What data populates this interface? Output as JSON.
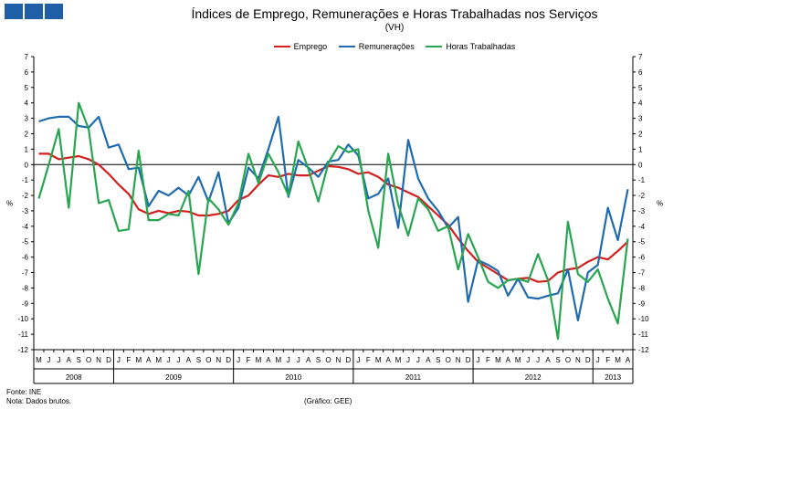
{
  "header": {
    "title": "Índices de Emprego, Remunerações e Horas Trabalhadas nos Serviços",
    "subtitle": "(VH)"
  },
  "colors": {
    "emprego": "#d41f1f",
    "remuneracoes": "#1f6bb0",
    "horas": "#27a550",
    "logo": "#1f5fa8"
  },
  "footer": {
    "source": "Fonte: INE",
    "note": "Nota: Dados brutos.",
    "credit": "(Gráfico: GEE)"
  },
  "chart_data": {
    "type": "line",
    "title": "Índices de Emprego, Remunerações e Horas Trabalhadas nos Serviços",
    "subtitle": "(VH)",
    "ylabel_left": "%",
    "ylabel_right": "%",
    "ylim": [
      -12,
      7
    ],
    "yticks": [
      7,
      6,
      5,
      4,
      3,
      2,
      1,
      0,
      -1,
      -2,
      -3,
      -4,
      -5,
      -6,
      -7,
      -8,
      -9,
      -10,
      -11,
      -12
    ],
    "months": [
      "M",
      "J",
      "J",
      "A",
      "S",
      "O",
      "N",
      "D",
      "J",
      "F",
      "M",
      "A",
      "M",
      "J",
      "J",
      "A",
      "S",
      "O",
      "N",
      "D",
      "J",
      "F",
      "M",
      "A",
      "M",
      "J",
      "J",
      "A",
      "S",
      "O",
      "N",
      "D",
      "J",
      "F",
      "M",
      "A",
      "M",
      "J",
      "J",
      "A",
      "S",
      "O",
      "N",
      "D",
      "J",
      "F",
      "M",
      "A",
      "M",
      "J",
      "J",
      "A",
      "S",
      "O",
      "N",
      "D",
      "J",
      "F",
      "M",
      "A"
    ],
    "years": [
      {
        "label": "2008",
        "start": 0,
        "end": 7
      },
      {
        "label": "2009",
        "start": 8,
        "end": 19
      },
      {
        "label": "2010",
        "start": 20,
        "end": 31
      },
      {
        "label": "2011",
        "start": 32,
        "end": 43
      },
      {
        "label": "2012",
        "start": 44,
        "end": 55
      },
      {
        "label": "2013",
        "start": 56,
        "end": 59
      }
    ],
    "grid": false,
    "legend_position": "top-center",
    "series": [
      {
        "name": "Emprego",
        "key": "emprego",
        "values": [
          0.7,
          0.7,
          0.35,
          0.45,
          0.55,
          0.35,
          0.0,
          -0.6,
          -1.3,
          -1.9,
          -2.9,
          -3.2,
          -3.0,
          -3.15,
          -3.0,
          -3.05,
          -3.3,
          -3.3,
          -3.2,
          -3.0,
          -2.3,
          -2.0,
          -1.3,
          -0.7,
          -0.8,
          -0.6,
          -0.7,
          -0.7,
          -0.4,
          -0.1,
          -0.15,
          -0.3,
          -0.6,
          -0.5,
          -0.8,
          -1.3,
          -1.5,
          -1.8,
          -2.1,
          -2.7,
          -3.3,
          -3.9,
          -4.8,
          -5.6,
          -6.3,
          -6.7,
          -7.1,
          -7.5,
          -7.4,
          -7.35,
          -7.6,
          -7.55,
          -7.0,
          -6.8,
          -6.7,
          -6.3,
          -6.0,
          -6.15,
          -5.6,
          -5.0
        ]
      },
      {
        "name": "Remunerações",
        "key": "remuneracoes",
        "values": [
          2.8,
          3.0,
          3.1,
          3.1,
          2.5,
          2.4,
          3.1,
          1.1,
          1.3,
          -0.3,
          -0.2,
          -2.7,
          -1.7,
          -2.0,
          -1.5,
          -2.0,
          -0.8,
          -2.4,
          -0.5,
          -3.8,
          -2.8,
          -0.2,
          -0.9,
          1.0,
          3.1,
          -2.1,
          0.3,
          -0.2,
          -0.8,
          0.2,
          0.3,
          1.3,
          0.6,
          -2.2,
          -1.9,
          -0.9,
          -4.1,
          1.6,
          -0.9,
          -2.2,
          -3.0,
          -4.1,
          -3.4,
          -8.9,
          -6.2,
          -6.5,
          -6.9,
          -8.5,
          -7.4,
          -8.6,
          -8.7,
          -8.5,
          -8.35,
          -6.8,
          -10.1,
          -7.0,
          -6.5,
          -2.8,
          -4.9,
          -1.6
        ]
      },
      {
        "name": "Horas Trabalhadas",
        "key": "horas",
        "values": [
          -2.2,
          0.0,
          2.3,
          -2.8,
          4.0,
          2.3,
          -2.5,
          -2.3,
          -4.3,
          -4.2,
          0.9,
          -3.6,
          -3.6,
          -3.2,
          -3.3,
          -1.7,
          -7.1,
          -2.2,
          -2.9,
          -3.9,
          -2.5,
          0.7,
          -1.2,
          0.7,
          -0.5,
          -2.0,
          1.5,
          -0.3,
          -2.4,
          0.1,
          1.2,
          0.8,
          1.0,
          -3.0,
          -5.4,
          0.7,
          -2.6,
          -4.6,
          -2.2,
          -2.9,
          -4.3,
          -4.0,
          -6.8,
          -4.5,
          -6.0,
          -7.6,
          -8.0,
          -7.5,
          -7.4,
          -7.6,
          -5.8,
          -7.5,
          -11.3,
          -3.7,
          -7.1,
          -7.6,
          -6.8,
          -8.7,
          -10.3,
          -4.8
        ]
      }
    ]
  }
}
